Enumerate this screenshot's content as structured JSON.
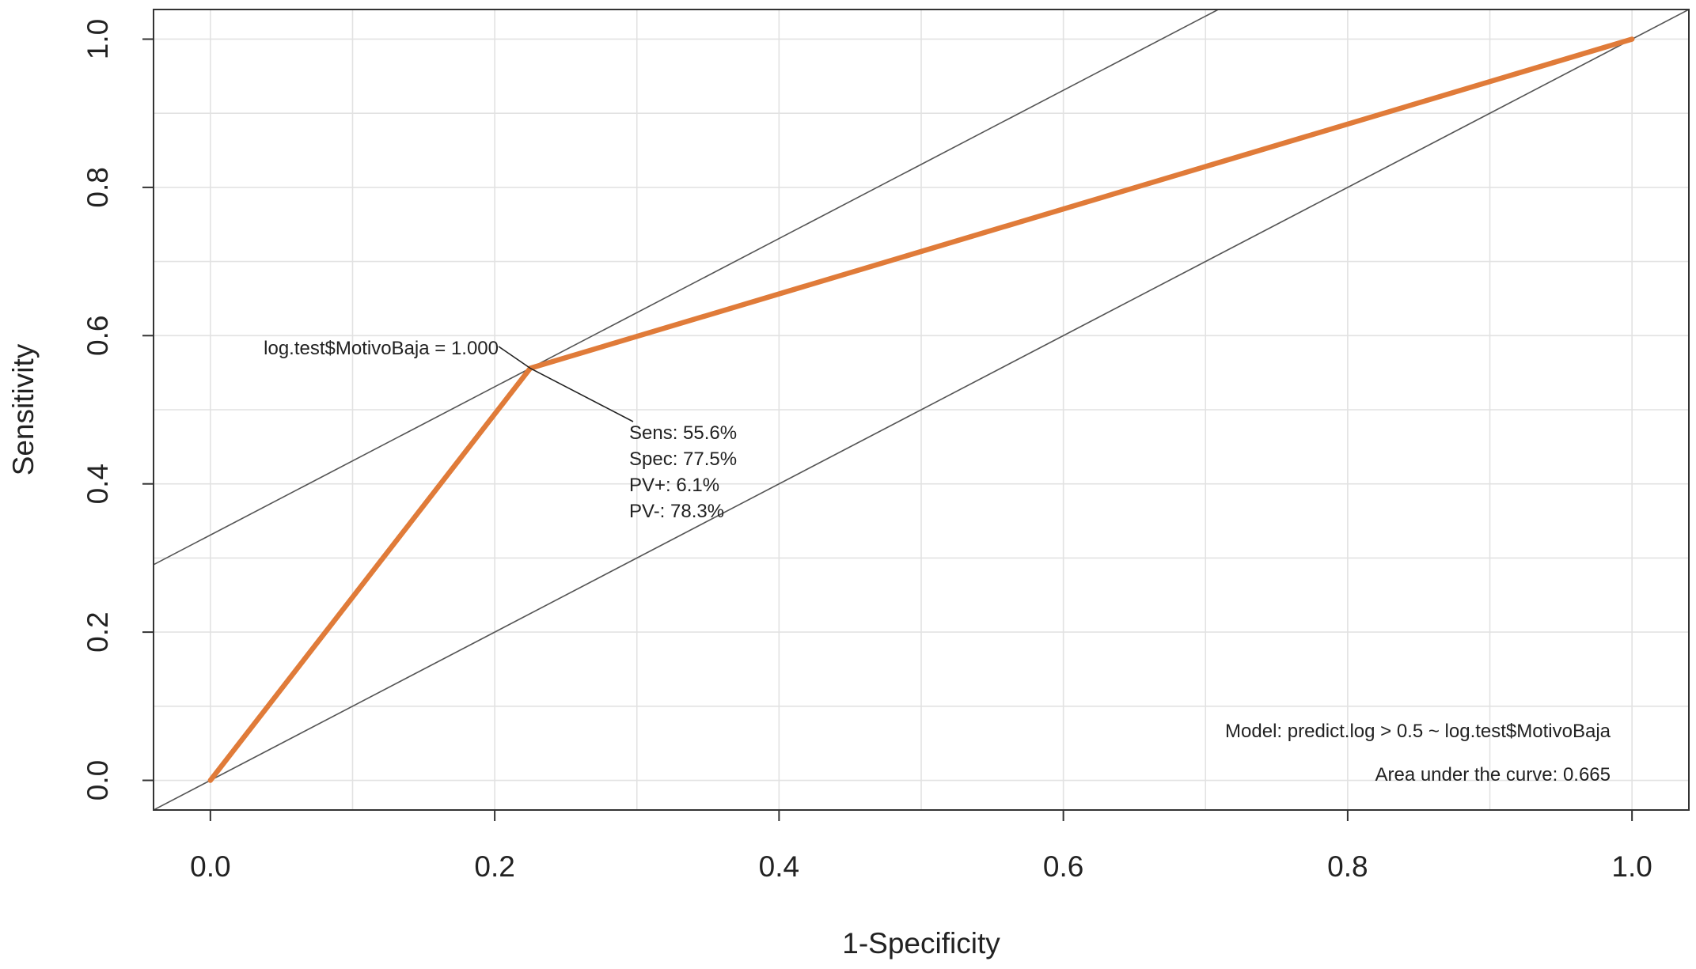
{
  "chart_data": {
    "type": "line",
    "xlabel": "1-Specificity",
    "ylabel": "Sensitivity",
    "xlim": [
      -0.04,
      1.04
    ],
    "ylim": [
      -0.04,
      1.04
    ],
    "x_ticks": [
      "0.0",
      "0.2",
      "0.4",
      "0.6",
      "0.8",
      "1.0"
    ],
    "y_ticks": [
      "0.0",
      "0.2",
      "0.4",
      "0.6",
      "0.8",
      "1.0"
    ],
    "grid": true,
    "series": [
      {
        "x": [
          0.0,
          0.225,
          1.0
        ],
        "y": [
          0.0,
          0.556,
          1.0
        ],
        "color": "#e07b39"
      }
    ],
    "reference_lines": [
      {
        "intercept": 0.331,
        "slope": 1,
        "color": "#555555"
      },
      {
        "intercept": 0.0,
        "slope": 1,
        "color": "#555555"
      }
    ],
    "point_annotation": {
      "x": 0.225,
      "y": 0.556,
      "label": "log.test$MotivoBaja = 1.000",
      "stats": [
        "Sens: 55.6%",
        "Spec: 77.5%",
        "PV+: 6.1%",
        "PV-: 78.3%"
      ]
    },
    "model_text": "Model:  predict.log > 0.5 ~ log.test$MotivoBaja",
    "auc_text": "Area under the curve: 0.665"
  }
}
